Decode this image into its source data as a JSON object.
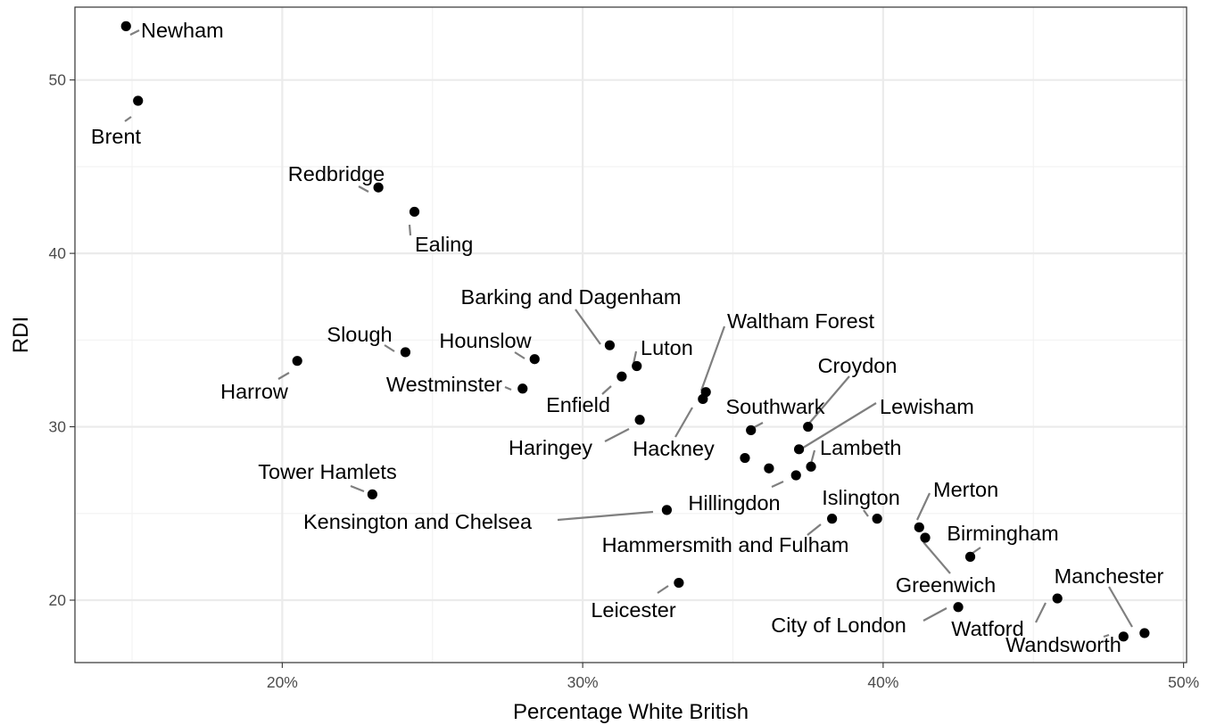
{
  "chart_data": {
    "type": "scatter",
    "xlabel": "Percentage White British",
    "ylabel": "RDI",
    "xlim": [
      13.1,
      50.1
    ],
    "ylim": [
      16.4,
      54.2
    ],
    "x_ticks": [
      20,
      30,
      40,
      50
    ],
    "x_tick_labels": [
      "20%",
      "30%",
      "40%",
      "50%"
    ],
    "y_ticks": [
      20,
      30,
      40,
      50
    ],
    "y_tick_labels": [
      "20",
      "30",
      "40",
      "50"
    ],
    "grid": true,
    "points": [
      {
        "label": "Newham",
        "x": 14.8,
        "y": 53.1
      },
      {
        "label": "Brent",
        "x": 15.2,
        "y": 48.8
      },
      {
        "label": "Redbridge",
        "x": 23.2,
        "y": 43.8
      },
      {
        "label": "Ealing",
        "x": 24.4,
        "y": 42.4
      },
      {
        "label": "Harrow",
        "x": 20.5,
        "y": 33.8
      },
      {
        "label": "Slough",
        "x": 24.1,
        "y": 34.3
      },
      {
        "label": "Westminster",
        "x": 28.0,
        "y": 32.2
      },
      {
        "label": "Hounslow",
        "x": 28.4,
        "y": 33.9
      },
      {
        "label": "Barking and Dagenham",
        "x": 30.9,
        "y": 34.7
      },
      {
        "label": "Luton",
        "x": 31.8,
        "y": 33.5
      },
      {
        "label": "Enfield",
        "x": 31.3,
        "y": 32.9
      },
      {
        "label": "Haringey",
        "x": 31.9,
        "y": 30.4
      },
      {
        "label": "Waltham Forest",
        "x": 34.1,
        "y": 32.0
      },
      {
        "label": "Hackney",
        "x": 34.0,
        "y": 31.6
      },
      {
        "label": "Southwark",
        "x": 35.6,
        "y": 29.8
      },
      {
        "label": "Croydon",
        "x": 37.5,
        "y": 30.0
      },
      {
        "label": "Lewisham",
        "x": 37.2,
        "y": 28.7
      },
      {
        "label": "",
        "x": 35.4,
        "y": 28.2
      },
      {
        "label": "",
        "x": 36.2,
        "y": 27.6
      },
      {
        "label": "Hillingdon",
        "x": 37.1,
        "y": 27.2
      },
      {
        "label": "Lambeth",
        "x": 37.6,
        "y": 27.7
      },
      {
        "label": "Tower Hamlets",
        "x": 23.0,
        "y": 26.1
      },
      {
        "label": "Kensington and Chelsea",
        "x": 32.8,
        "y": 25.2
      },
      {
        "label": "Hammersmith and Fulham",
        "x": 38.3,
        "y": 24.7
      },
      {
        "label": "Islington",
        "x": 39.8,
        "y": 24.7
      },
      {
        "label": "Merton",
        "x": 41.2,
        "y": 24.2
      },
      {
        "label": "Greenwich",
        "x": 41.4,
        "y": 23.6
      },
      {
        "label": "Birmingham",
        "x": 42.9,
        "y": 22.5
      },
      {
        "label": "Leicester",
        "x": 33.2,
        "y": 21.0
      },
      {
        "label": "City of London",
        "x": 42.5,
        "y": 19.6
      },
      {
        "label": "Watford",
        "x": 45.8,
        "y": 20.1
      },
      {
        "label": "Wandsworth",
        "x": 48.0,
        "y": 17.9
      },
      {
        "label": "Manchester",
        "x": 48.7,
        "y": 18.1
      }
    ]
  }
}
